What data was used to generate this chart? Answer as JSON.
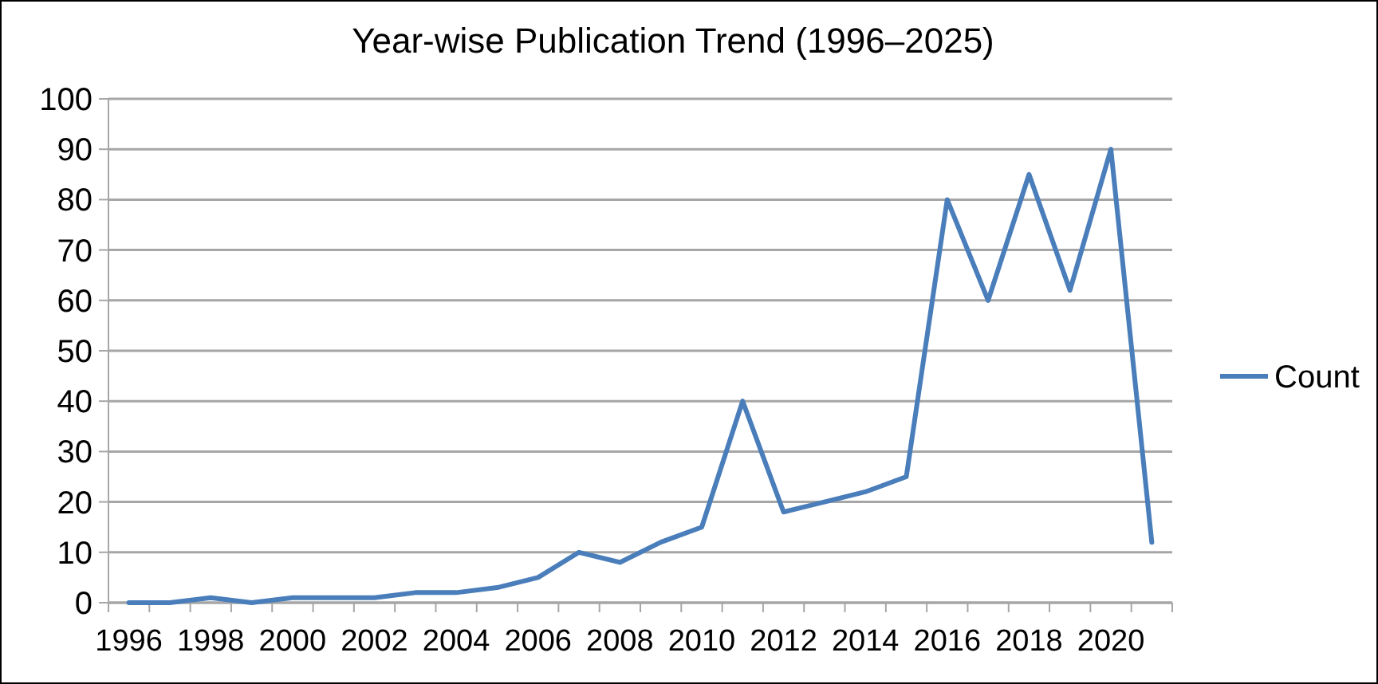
{
  "chart_data": {
    "type": "line",
    "title": "Year-wise Publication Trend (1996–2025)",
    "categories": [
      "1996",
      null,
      "1998",
      null,
      "2000",
      null,
      "2002",
      null,
      "2004",
      null,
      "2006",
      null,
      "2008",
      null,
      "2010",
      null,
      "2012",
      null,
      "2014",
      null,
      "2016",
      null,
      "2018",
      null,
      "2020",
      null
    ],
    "series": [
      {
        "name": "Count",
        "color": "#4a7ebb",
        "values": [
          0,
          0,
          1,
          0,
          1,
          1,
          1,
          2,
          2,
          3,
          5,
          10,
          8,
          12,
          15,
          40,
          18,
          20,
          22,
          25,
          80,
          60,
          85,
          62,
          90,
          12
        ]
      }
    ],
    "ylim": [
      0,
      100
    ],
    "yticks": [
      0,
      10,
      20,
      30,
      40,
      50,
      60,
      70,
      80,
      90,
      100
    ],
    "grid": "y",
    "legend": "right",
    "marker": "none",
    "line_style": "solid"
  }
}
